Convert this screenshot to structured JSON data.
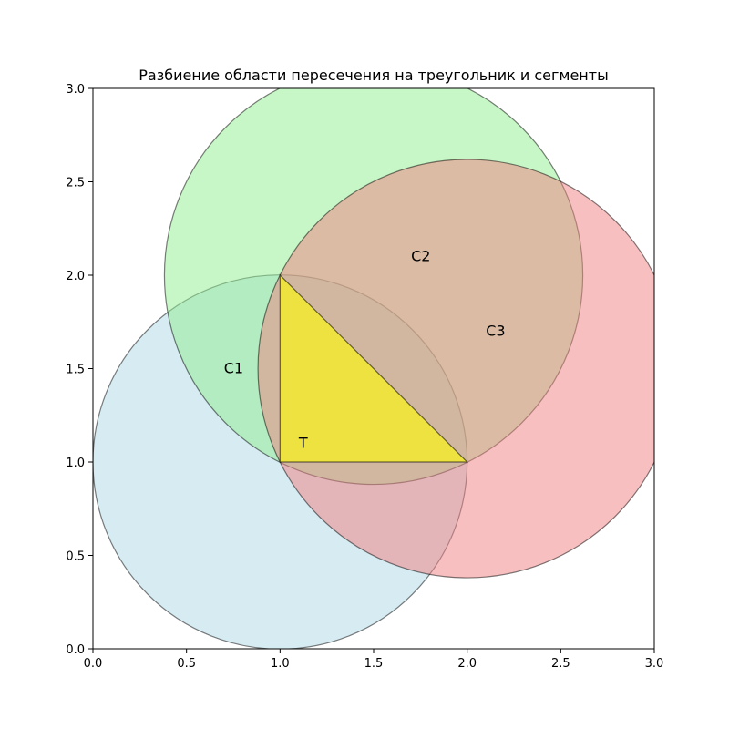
{
  "chart_data": {
    "type": "diagram",
    "title": "Разбиение области пересечения на треугольник и сегменты",
    "xlim": [
      0,
      3
    ],
    "ylim": [
      0,
      3
    ],
    "grid": false,
    "x_ticks": [
      "0.0",
      "0.5",
      "1.0",
      "1.5",
      "2.0",
      "2.5",
      "3.0"
    ],
    "y_ticks": [
      "0.0",
      "0.5",
      "1.0",
      "1.5",
      "2.0",
      "2.5",
      "3.0"
    ],
    "circles": [
      {
        "cx": 1.0,
        "cy": 1.0,
        "r": 1.0,
        "fill": "#add8e6",
        "alpha": 0.5
      },
      {
        "cx": 1.5,
        "cy": 2.0,
        "r": 1.118,
        "fill": "#90ee90",
        "alpha": 0.5
      },
      {
        "cx": 2.0,
        "cy": 1.5,
        "r": 1.118,
        "fill": "#f08080",
        "alpha": 0.5
      }
    ],
    "triangle": {
      "points": [
        [
          1.0,
          1.0
        ],
        [
          2.0,
          1.0
        ],
        [
          1.0,
          2.0
        ]
      ],
      "fill": "#ffff00",
      "alpha": 0.6
    },
    "labels": [
      {
        "text": "C1",
        "x": 0.7,
        "y": 1.5
      },
      {
        "text": "C2",
        "x": 1.7,
        "y": 2.1
      },
      {
        "text": "C3",
        "x": 2.1,
        "y": 1.7
      },
      {
        "text": "T",
        "x": 1.1,
        "y": 1.1
      }
    ]
  }
}
